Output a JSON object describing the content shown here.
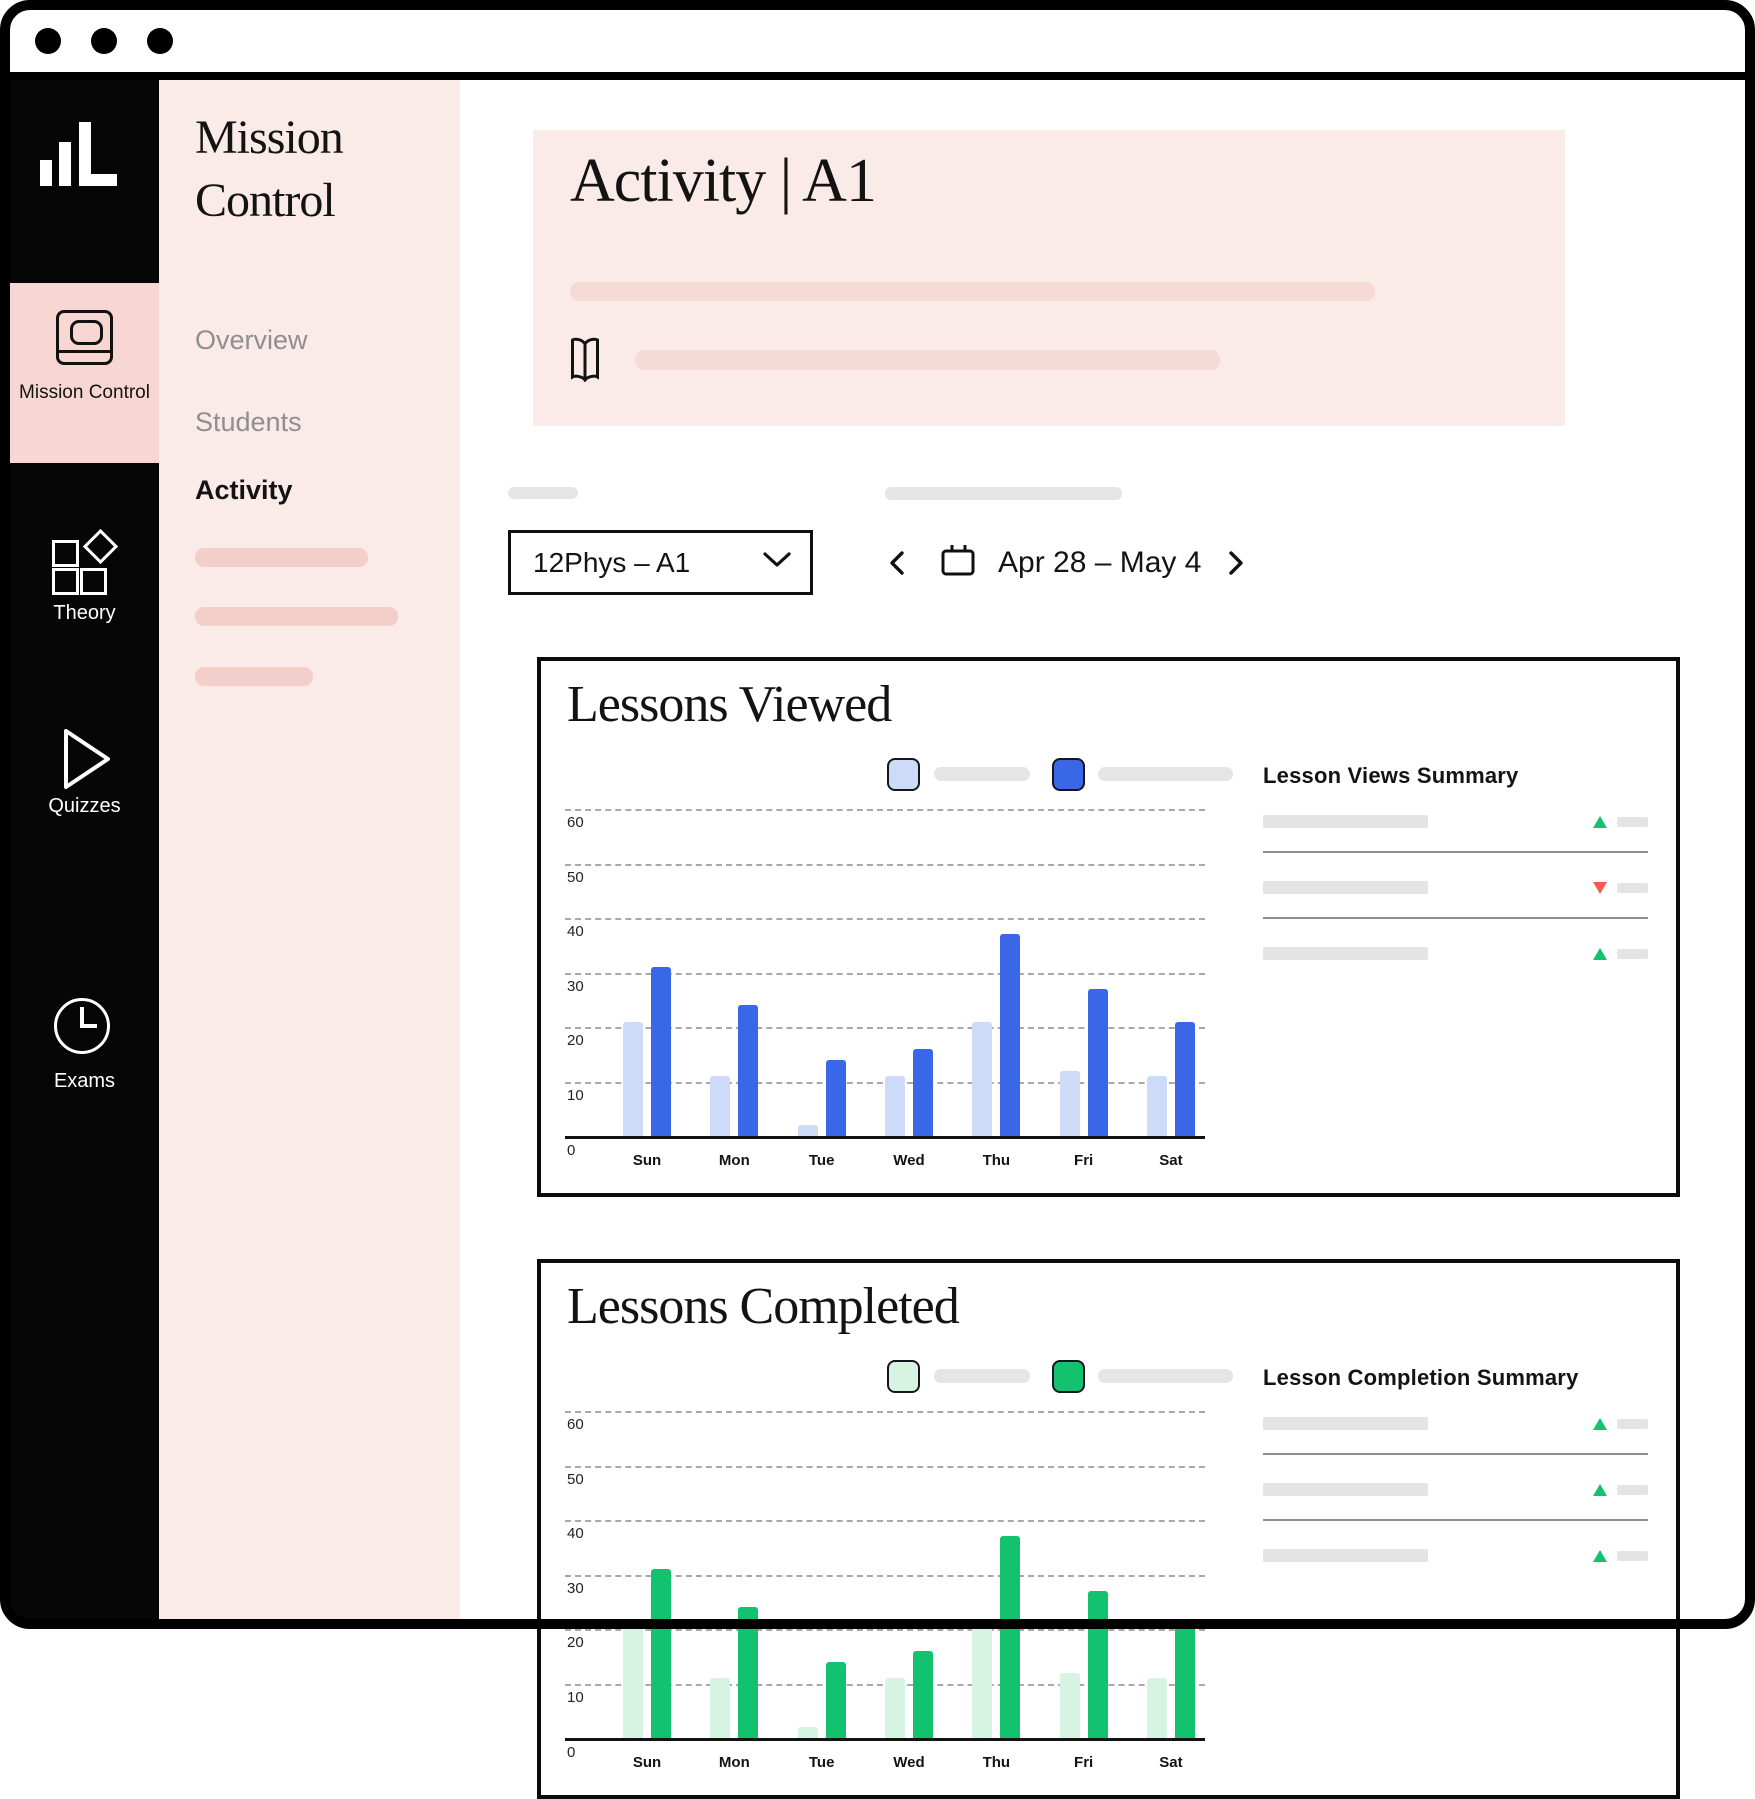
{
  "window": {
    "controls": {
      "dot_count": 3
    }
  },
  "app_sidebar": {
    "logo_icon": "bar-chart-logo",
    "items": [
      {
        "label": "Mission Control",
        "icon": "monitor-icon",
        "active": true
      },
      {
        "label": "Theory",
        "icon": "blocks-icon",
        "active": false
      },
      {
        "label": "Quizzes",
        "icon": "play-icon",
        "active": false
      },
      {
        "label": "Exams",
        "icon": "clock-icon",
        "active": false
      }
    ]
  },
  "subnav": {
    "title": "Mission Control",
    "items": [
      {
        "label": "Overview",
        "active": false
      },
      {
        "label": "Students",
        "active": false
      },
      {
        "label": "Activity",
        "active": true
      }
    ],
    "placeholder_bar_count": 3
  },
  "header": {
    "title": "Activity | A1",
    "icon": "open-book-icon"
  },
  "filters": {
    "class_dropdown": {
      "value": "12Phys – A1",
      "icon": "chevron-down-icon"
    },
    "date_nav": {
      "prev_icon": "chevron-left-icon",
      "calendar_icon": "calendar-icon",
      "range": "Apr 28 – May 4",
      "next_icon": "chevron-right-icon"
    }
  },
  "charts": [
    {
      "title": "Lessons Viewed",
      "summary_title": "Lesson Views Summary",
      "summary_rows": [
        {
          "trend": "up"
        },
        {
          "trend": "down"
        },
        {
          "trend": "up"
        }
      ]
    },
    {
      "title": "Lessons Completed",
      "summary_title": "Lesson Completion Summary",
      "summary_rows": [
        {
          "trend": "up"
        },
        {
          "trend": "up"
        },
        {
          "trend": "up"
        }
      ]
    }
  ],
  "chart_data": [
    {
      "type": "bar",
      "title": "Lessons Viewed",
      "categories": [
        "Sun",
        "Mon",
        "Tue",
        "Wed",
        "Thu",
        "Fri",
        "Sat"
      ],
      "series": [
        {
          "name": "series-light",
          "color": "#CEDBF8",
          "values": [
            21,
            11,
            2,
            11,
            21,
            12,
            11
          ]
        },
        {
          "name": "series-dark",
          "color": "#3A66E8",
          "values": [
            31,
            24,
            14,
            16,
            37,
            27,
            21
          ]
        }
      ],
      "xlabel": "",
      "ylabel": "",
      "ylim": [
        0,
        60
      ],
      "yticks": [
        0,
        10,
        20,
        30,
        40,
        50,
        60
      ],
      "gridlines": "dashed-horizontal",
      "legend_position": "top-right",
      "legend_labels_redacted": true
    },
    {
      "type": "bar",
      "title": "Lessons Completed",
      "categories": [
        "Sun",
        "Mon",
        "Tue",
        "Wed",
        "Thu",
        "Fri",
        "Sat"
      ],
      "series": [
        {
          "name": "series-light",
          "color": "#D7F4E3",
          "values": [
            21,
            11,
            2,
            11,
            21,
            12,
            11
          ]
        },
        {
          "name": "series-dark",
          "color": "#12C26E",
          "values": [
            31,
            24,
            14,
            16,
            37,
            27,
            21
          ]
        }
      ],
      "xlabel": "",
      "ylabel": "",
      "ylim": [
        0,
        60
      ],
      "yticks": [
        0,
        10,
        20,
        30,
        40,
        50,
        60
      ],
      "gridlines": "dashed-horizontal",
      "legend_position": "top-right",
      "legend_labels_redacted": true,
      "partially_visible": true
    }
  ],
  "colors": {
    "blue_dark": "#3A66E8",
    "blue_light": "#CEDBF8",
    "green_dark": "#12C26E",
    "green_light": "#D7F4E3",
    "red_down": "#F9594B",
    "pink_bg": "#FAEBE9",
    "pink_accent": "#F8D7D3",
    "ink": "#101010"
  }
}
